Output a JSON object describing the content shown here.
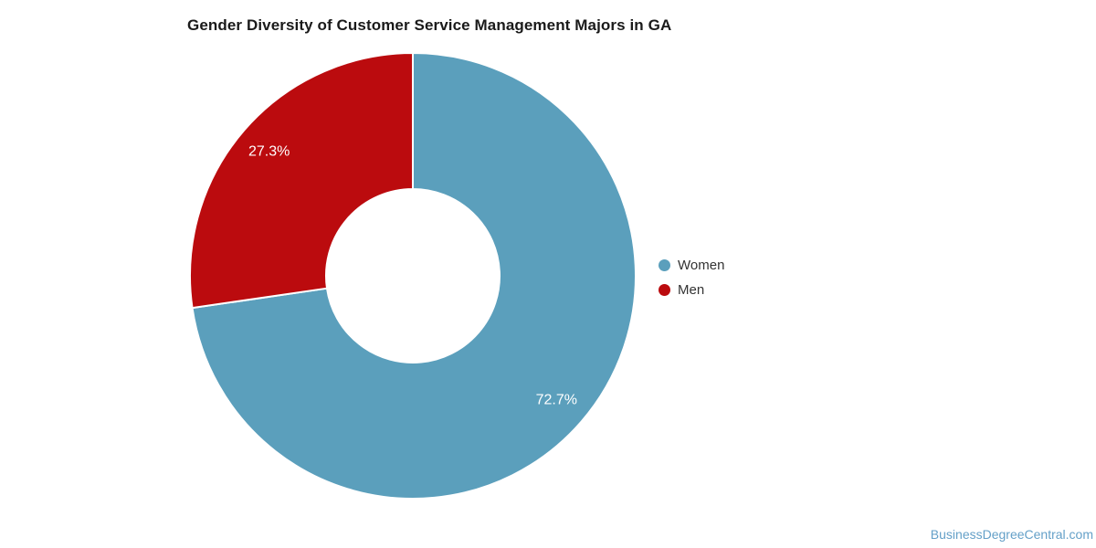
{
  "title": "Gender Diversity of Customer Service Management Majors in GA",
  "watermark": "BusinessDegreeCentral.com",
  "chart_data": {
    "type": "pie",
    "subtype": "donut",
    "title": "Gender Diversity of Customer Service Management Majors in GA",
    "categories": [
      "Women",
      "Men"
    ],
    "values": [
      72.7,
      27.3
    ],
    "labels": [
      "72.7%",
      "27.3%"
    ],
    "colors": [
      "#5b9fbc",
      "#bb0b0e"
    ],
    "label_color": "#ffffff",
    "legend_position": "right",
    "start_angle_deg": 0,
    "direction": "clockwise",
    "background": "#ffffff"
  },
  "legend": {
    "items": [
      {
        "label": "Women",
        "color": "#5b9fbc"
      },
      {
        "label": "Men",
        "color": "#bb0b0e"
      }
    ]
  }
}
